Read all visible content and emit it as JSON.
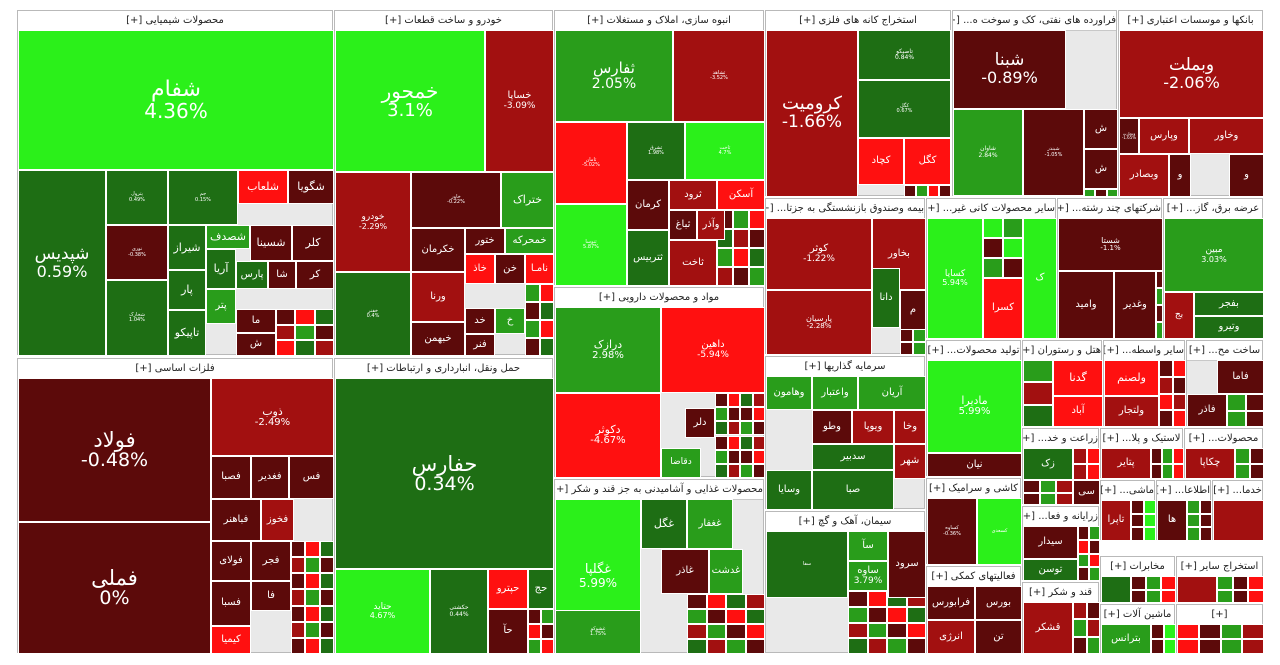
{
  "colors": {
    "pos_strong": "#2bf01a",
    "pos_mid": "#299d1b",
    "pos_weak": "#1e6e14",
    "neg_weak": "#5c0a0a",
    "neg_mid": "#a21010",
    "neg_strong": "#ff1010"
  },
  "sectors": [
    {
      "title": "محصولات شیمیایی [+]",
      "tiles": [
        {
          "symbol": "شفام",
          "change": "4.36%",
          "color": "pos_strong"
        },
        {
          "symbol": "شپدیس",
          "change": "0.59%",
          "color": "pos_weak"
        },
        {
          "symbol": "پترول",
          "change": "0.49%",
          "color": "pos_weak"
        },
        {
          "symbol": "جم",
          "change": "0.15%",
          "color": "pos_weak"
        },
        {
          "symbol": "شلعاب",
          "change": "",
          "color": "neg_strong"
        },
        {
          "symbol": "شگویا",
          "change": "",
          "color": "neg_weak"
        },
        {
          "symbol": "نوری",
          "change": "-0.38%",
          "color": "neg_weak"
        },
        {
          "symbol": "شیراز",
          "change": "",
          "color": "pos_weak"
        },
        {
          "symbol": "شصدف",
          "change": "",
          "color": "pos_mid"
        },
        {
          "symbol": "شسینا",
          "change": "",
          "color": "neg_weak"
        },
        {
          "symbol": "کلر",
          "change": "",
          "color": "neg_weak"
        },
        {
          "symbol": "پار",
          "change": "",
          "color": "pos_weak"
        },
        {
          "symbol": "آریا",
          "change": "",
          "color": "pos_weak"
        },
        {
          "symbol": "پارس",
          "change": "",
          "color": "pos_weak"
        },
        {
          "symbol": "شا",
          "change": "",
          "color": "neg_weak"
        },
        {
          "symbol": "کر",
          "change": "",
          "color": "neg_weak"
        },
        {
          "symbol": "پتر",
          "change": "",
          "color": "pos_mid"
        },
        {
          "symbol": "تاپیکو",
          "change": "",
          "color": "pos_weak"
        },
        {
          "symbol": "شخارک",
          "change": "1.04%",
          "color": "pos_weak"
        },
        {
          "symbol": "ما",
          "change": "",
          "color": "neg_weak"
        },
        {
          "symbol": "ش",
          "change": "",
          "color": "neg_weak"
        }
      ]
    },
    {
      "title": "خودرو و ساخت قطعات [+]",
      "tiles": [
        {
          "symbol": "خمحور",
          "change": "3.1%",
          "color": "pos_strong"
        },
        {
          "symbol": "خساپا",
          "change": "-3.09%",
          "color": "neg_mid"
        },
        {
          "symbol": "خودرو",
          "change": "-2.29%",
          "color": "neg_mid"
        },
        {
          "symbol": "خاور",
          "change": "-0.22%",
          "color": "neg_weak"
        },
        {
          "symbol": "ختراک",
          "change": "",
          "color": "pos_mid"
        },
        {
          "symbol": "خکرمان",
          "change": "",
          "color": "neg_weak"
        },
        {
          "symbol": "ختور",
          "change": "",
          "color": "neg_weak"
        },
        {
          "symbol": "خمحرکه",
          "change": "",
          "color": "pos_mid"
        },
        {
          "symbol": "خفنر",
          "change": "0.4%",
          "color": "pos_weak"
        },
        {
          "symbol": "ورنا",
          "change": "",
          "color": "neg_mid"
        },
        {
          "symbol": "خاذ",
          "change": "",
          "color": "neg_strong"
        },
        {
          "symbol": "خن",
          "change": "",
          "color": "neg_weak"
        },
        {
          "symbol": "خبهمن",
          "change": "",
          "color": "neg_weak"
        },
        {
          "symbol": "خد",
          "change": "",
          "color": "neg_weak"
        },
        {
          "symbol": "فنر",
          "change": "",
          "color": "neg_weak"
        },
        {
          "symbol": "نامـا",
          "change": "",
          "color": "neg_strong"
        },
        {
          "symbol": "خ",
          "change": "",
          "color": "pos_mid"
        }
      ]
    },
    {
      "title": "انبوه سازی، املاک و مستغلات [+]",
      "tiles": [
        {
          "symbol": "ثفارس",
          "change": "2.05%",
          "color": "pos_mid"
        },
        {
          "symbol": "ثشاهد",
          "change": "-3.52%",
          "color": "neg_mid"
        },
        {
          "symbol": "ثامان",
          "change": "-5.02%",
          "color": "neg_strong"
        },
        {
          "symbol": "ثشرق",
          "change": "1.98%",
          "color": "pos_weak"
        },
        {
          "symbol": "ثاخت",
          "change": "4.7%",
          "color": "pos_strong"
        },
        {
          "symbol": "ثنوسا",
          "change": "5.87%",
          "color": "pos_strong"
        },
        {
          "symbol": "کرمان",
          "change": "",
          "color": "neg_weak"
        },
        {
          "symbol": "ثرود",
          "change": "",
          "color": "neg_mid"
        },
        {
          "symbol": "آسکن",
          "change": "",
          "color": "neg_strong"
        },
        {
          "symbol": "ثباغ",
          "change": "",
          "color": "neg_weak"
        },
        {
          "symbol": "وآذر",
          "change": "",
          "color": "neg_mid"
        },
        {
          "symbol": "ثتربیس",
          "change": "",
          "color": "pos_weak"
        },
        {
          "symbol": "ثاخت",
          "change": "",
          "color": "neg_mid"
        }
      ]
    },
    {
      "title": "استخراج کانه های فلزی [+]",
      "tiles": [
        {
          "symbol": "کرومیت",
          "change": "-1.66%",
          "color": "neg_mid"
        },
        {
          "symbol": "تاصیکو",
          "change": "0.84%",
          "color": "pos_weak"
        },
        {
          "symbol": "کگل",
          "change": "0.67%",
          "color": "pos_weak"
        },
        {
          "symbol": "کچاد",
          "change": "",
          "color": "neg_strong"
        },
        {
          "symbol": "کگل",
          "change": "",
          "color": "neg_strong"
        }
      ]
    },
    {
      "title": "فراورده های نفتی، کک و سوخت ه... [+]",
      "tiles": [
        {
          "symbol": "شبنا",
          "change": "-0.89%",
          "color": "neg_weak"
        },
        {
          "symbol": "شاوان",
          "change": "2.84%",
          "color": "pos_mid"
        },
        {
          "symbol": "شبندر",
          "change": "-1.05%",
          "color": "neg_weak"
        },
        {
          "symbol": "ش",
          "change": "",
          "color": "neg_weak"
        },
        {
          "symbol": "ش",
          "change": "",
          "color": "neg_weak"
        }
      ]
    },
    {
      "title": "بانکها و موسسات اعتباری [+]",
      "tiles": [
        {
          "symbol": "وبملت",
          "change": "-2.06%",
          "color": "neg_mid"
        },
        {
          "symbol": "وخاور",
          "change": "",
          "color": "neg_mid"
        },
        {
          "symbol": "وپارس",
          "change": "",
          "color": "neg_mid"
        },
        {
          "symbol": "وتجارت",
          "change": "-1.65%",
          "color": "neg_weak"
        },
        {
          "symbol": "وبصادر",
          "change": "",
          "color": "neg_mid"
        },
        {
          "symbol": "و",
          "change": "",
          "color": "neg_weak"
        },
        {
          "symbol": "و",
          "change": "",
          "color": "neg_weak"
        }
      ]
    },
    {
      "title": "فلزات اساسی [+]",
      "tiles": [
        {
          "symbol": "فولاد",
          "change": "-0.48%",
          "color": "neg_weak"
        },
        {
          "symbol": "فملی",
          "change": "0%",
          "color": "neg_weak"
        },
        {
          "symbol": "ذوب",
          "change": "-2.49%",
          "color": "neg_mid"
        },
        {
          "symbol": "فصبا",
          "change": "",
          "color": "neg_weak"
        },
        {
          "symbol": "فغدیر",
          "change": "",
          "color": "neg_weak"
        },
        {
          "symbol": "فس",
          "change": "",
          "color": "neg_weak"
        },
        {
          "symbol": "فباهنر",
          "change": "",
          "color": "neg_weak"
        },
        {
          "symbol": "فخوز",
          "change": "",
          "color": "neg_mid"
        },
        {
          "symbol": "فولای",
          "change": "",
          "color": "neg_weak"
        },
        {
          "symbol": "فجر",
          "change": "",
          "color": "neg_weak"
        },
        {
          "symbol": "فا",
          "change": "",
          "color": "neg_weak"
        },
        {
          "symbol": "فسبا",
          "change": "",
          "color": "neg_weak"
        },
        {
          "symbol": "کیمیا",
          "change": "",
          "color": "neg_strong"
        }
      ]
    },
    {
      "title": "حمل ونقل، انبارداری و ارتباطات [+]",
      "tiles": [
        {
          "symbol": "حفارس",
          "change": "0.34%",
          "color": "pos_weak"
        },
        {
          "symbol": "حتاید",
          "change": "4.67%",
          "color": "pos_strong"
        },
        {
          "symbol": "حکشتی",
          "change": "0.44%",
          "color": "pos_weak"
        },
        {
          "symbol": "حپترو",
          "change": "",
          "color": "neg_strong"
        },
        {
          "symbol": "حج",
          "change": "",
          "color": "pos_weak"
        },
        {
          "symbol": "حآ",
          "change": "",
          "color": "neg_weak"
        }
      ]
    },
    {
      "title": "مواد و محصولات دارویی [+]",
      "tiles": [
        {
          "symbol": "درازک",
          "change": "2.98%",
          "color": "pos_mid"
        },
        {
          "symbol": "داهین",
          "change": "-5.94%",
          "color": "neg_strong"
        },
        {
          "symbol": "دکوثر",
          "change": "-4.67%",
          "color": "neg_strong"
        },
        {
          "symbol": "دقاضا",
          "change": "",
          "color": "pos_mid"
        },
        {
          "symbol": "دلر",
          "change": "",
          "color": "neg_weak"
        }
      ]
    },
    {
      "title": "محصولات غذایی و آشامیدنی به جز قند و شکر [+]",
      "tiles": [
        {
          "symbol": "غگلپا",
          "change": "5.99%",
          "color": "pos_strong"
        },
        {
          "symbol": "غگل",
          "change": "",
          "color": "pos_weak"
        },
        {
          "symbol": "غشوکو",
          "change": "1.75%",
          "color": "pos_mid"
        },
        {
          "symbol": "غغفار",
          "change": "",
          "color": "pos_mid"
        },
        {
          "symbol": "غاذر",
          "change": "",
          "color": "neg_weak"
        },
        {
          "symbol": "غدشت",
          "change": "",
          "color": "pos_mid"
        }
      ]
    },
    {
      "title": "بیمه وصندوق بازنشستگی به جزتا... [+]",
      "tiles": [
        {
          "symbol": "کوثر",
          "change": "-1.22%",
          "color": "neg_mid"
        },
        {
          "symbol": "بخاور",
          "change": "",
          "color": "neg_mid"
        },
        {
          "symbol": "دانا",
          "change": "",
          "color": "pos_weak"
        },
        {
          "symbol": "پارسیان",
          "change": "-2.28%",
          "color": "neg_mid"
        },
        {
          "symbol": "م",
          "change": "",
          "color": "neg_weak"
        }
      ]
    },
    {
      "title": "سایر محصولات کانی غیر... [+]",
      "tiles": [
        {
          "symbol": "کسایا",
          "change": "5.94%",
          "color": "pos_strong"
        },
        {
          "symbol": "کسرا",
          "change": "",
          "color": "neg_strong"
        },
        {
          "symbol": "ک",
          "change": "",
          "color": "pos_strong"
        }
      ]
    },
    {
      "title": "شرکتهای چند رشته... [+]",
      "tiles": [
        {
          "symbol": "شستا",
          "change": "-1.1%",
          "color": "neg_weak"
        },
        {
          "symbol": "وغدیر",
          "change": "",
          "color": "neg_weak"
        },
        {
          "symbol": "وامید",
          "change": "",
          "color": "neg_weak"
        }
      ]
    },
    {
      "title": "عرضه برق، گاز... [+]",
      "tiles": [
        {
          "symbol": "مبین",
          "change": "3.03%",
          "color": "pos_mid"
        },
        {
          "symbol": "بفجر",
          "change": "",
          "color": "pos_weak"
        },
        {
          "symbol": "وتیرو",
          "change": "",
          "color": "pos_weak"
        },
        {
          "symbol": "بج",
          "change": "",
          "color": "neg_mid"
        }
      ]
    },
    {
      "title": "سرمایه گذاریها [+]",
      "tiles": [
        {
          "symbol": "وهامون",
          "change": "",
          "color": "pos_mid"
        },
        {
          "symbol": "واعتبار",
          "change": "",
          "color": "pos_mid"
        },
        {
          "symbol": "آریان",
          "change": "",
          "color": "pos_mid"
        },
        {
          "symbol": "وخا",
          "change": "",
          "color": "neg_mid"
        },
        {
          "symbol": "وطو",
          "change": "",
          "color": "neg_weak"
        },
        {
          "symbol": "ویوپا",
          "change": "",
          "color": "neg_mid"
        },
        {
          "symbol": "شهر",
          "change": "",
          "color": "neg_mid"
        },
        {
          "symbol": "سدبیر",
          "change": "",
          "color": "pos_weak"
        },
        {
          "symbol": "وسایا",
          "change": "",
          "color": "pos_weak"
        },
        {
          "symbol": "صبا",
          "change": "",
          "color": "pos_weak"
        }
      ]
    },
    {
      "title": "تولید محصولات... [+]",
      "tiles": [
        {
          "symbol": "مادیرا",
          "change": "5.99%",
          "color": "pos_strong"
        },
        {
          "symbol": "نیان",
          "change": "",
          "color": "neg_weak"
        }
      ]
    },
    {
      "title": "هتل و رستوران [+]",
      "tiles": [
        {
          "symbol": "گدنا",
          "change": "",
          "color": "neg_strong"
        },
        {
          "symbol": "آباد",
          "change": "",
          "color": "neg_strong"
        }
      ]
    },
    {
      "title": "سایر واسطه... [+]",
      "tiles": [
        {
          "symbol": "ولصنم",
          "change": "",
          "color": "neg_strong"
        },
        {
          "symbol": "ولتجار",
          "change": "",
          "color": "neg_mid"
        }
      ]
    },
    {
      "title": "ساخت مح... [+]",
      "tiles": [
        {
          "symbol": "فاما",
          "change": "",
          "color": "neg_weak"
        },
        {
          "symbol": "فاذر",
          "change": "",
          "color": "neg_weak"
        }
      ]
    },
    {
      "title": "کاشی و سرامیک [+]",
      "tiles": [
        {
          "symbol": "کساوه",
          "change": "-0.36%",
          "color": "neg_weak"
        },
        {
          "symbol": "کسعدی",
          "change": "",
          "color": "pos_strong"
        }
      ]
    },
    {
      "title": "سیمان، آهک و گچ [+]",
      "tiles": [
        {
          "symbol": "سفا",
          "change": "",
          "color": "pos_weak"
        },
        {
          "symbol": "سآ",
          "change": "",
          "color": "pos_mid"
        },
        {
          "symbol": "سرود",
          "change": "",
          "color": "neg_weak"
        },
        {
          "symbol": "ساوه",
          "change": "3.79%",
          "color": "pos_mid"
        }
      ]
    },
    {
      "title": "زراعت و خد... [+]",
      "tiles": [
        {
          "symbol": "زک",
          "change": "",
          "color": "pos_weak"
        },
        {
          "symbol": "سی",
          "change": "",
          "color": "neg_weak"
        }
      ]
    },
    {
      "title": "لاستیک و پلا... [+]",
      "tiles": [
        {
          "symbol": "پتایر",
          "change": "",
          "color": "neg_mid"
        }
      ]
    },
    {
      "title": "محصولات... [+]",
      "tiles": [
        {
          "symbol": "چکاپا",
          "change": "",
          "color": "neg_mid"
        }
      ]
    },
    {
      "title": "زرایانه و فعا... [+]",
      "tiles": [
        {
          "symbol": "سیدار",
          "change": "",
          "color": "neg_weak"
        },
        {
          "symbol": "توسن",
          "change": "",
          "color": "pos_weak"
        }
      ]
    },
    {
      "title": "ماشی... [+]",
      "tiles": [
        {
          "symbol": "تاپرا",
          "change": "",
          "color": "neg_mid"
        }
      ]
    },
    {
      "title": "اطلاعا... [+]",
      "tiles": [
        {
          "symbol": "ها",
          "change": "",
          "color": "neg_weak"
        }
      ]
    },
    {
      "title": "خدما... [+]",
      "tiles": [
        {
          "symbol": "",
          "change": "",
          "color": "neg_mid"
        }
      ]
    },
    {
      "title": "فعالیتهای کمکی [+]",
      "tiles": [
        {
          "symbol": "فرابورس",
          "change": "",
          "color": "neg_weak"
        },
        {
          "symbol": "بورس",
          "change": "",
          "color": "neg_weak"
        },
        {
          "symbol": "انرژی",
          "change": "",
          "color": "neg_mid"
        },
        {
          "symbol": "تن",
          "change": "",
          "color": "neg_weak"
        }
      ]
    },
    {
      "title": "قند و شکر [+]",
      "tiles": [
        {
          "symbol": "قشکر",
          "change": "",
          "color": "neg_mid"
        }
      ]
    },
    {
      "title": "مخابرات [+]",
      "tiles": [
        {
          "symbol": "",
          "change": "",
          "color": "pos_weak"
        }
      ]
    },
    {
      "title": "استخراج سایر [+]",
      "tiles": [
        {
          "symbol": "",
          "change": "",
          "color": "neg_mid"
        }
      ]
    },
    {
      "title": "ماشین آلات [+]",
      "tiles": [
        {
          "symbol": "بترانس",
          "change": "",
          "color": "pos_mid"
        }
      ]
    },
    {
      "title": "[+]",
      "tiles": []
    }
  ]
}
